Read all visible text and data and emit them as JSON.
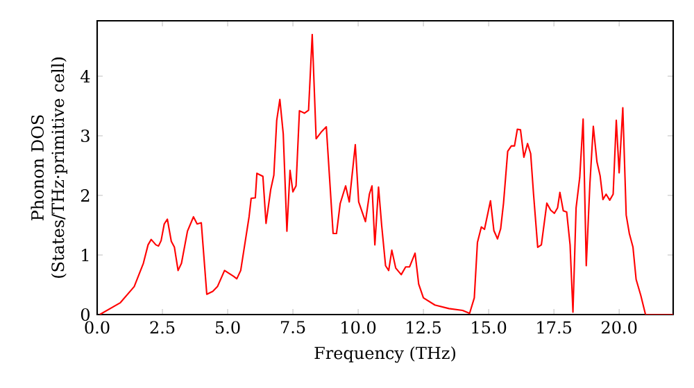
{
  "chart_data": {
    "type": "line",
    "xlabel": "Frequency (THz)",
    "ylabel": "Phonon DOS (States/THz·primitive cell)",
    "color": "#ff0000",
    "xlim": [
      0,
      22.07
    ],
    "ylim": [
      0,
      4.93
    ],
    "xticks": [
      {
        "value": 0,
        "label": "0.0"
      },
      {
        "value": 2.5,
        "label": "2.5"
      },
      {
        "value": 5,
        "label": "5.0"
      },
      {
        "value": 7.5,
        "label": "7.5"
      },
      {
        "value": 10,
        "label": "10.0"
      },
      {
        "value": 12.5,
        "label": "12.5"
      },
      {
        "value": 15,
        "label": "15.0"
      },
      {
        "value": 17.5,
        "label": "17.5"
      },
      {
        "value": 20,
        "label": "20.0"
      }
    ],
    "yticks": [
      0,
      1,
      2,
      3,
      4
    ],
    "x": [
      0.1,
      0.89,
      1.42,
      1.77,
      1.95,
      2.07,
      2.25,
      2.35,
      2.45,
      2.57,
      2.69,
      2.84,
      2.96,
      3.1,
      3.23,
      3.46,
      3.69,
      3.83,
      3.99,
      4.2,
      4.43,
      4.61,
      4.88,
      5.23,
      5.35,
      5.5,
      5.71,
      5.82,
      5.9,
      6.06,
      6.12,
      6.35,
      6.47,
      6.65,
      6.77,
      6.88,
      7.0,
      7.13,
      7.27,
      7.39,
      7.5,
      7.62,
      7.75,
      7.94,
      8.1,
      8.24,
      8.39,
      8.6,
      8.78,
      9.04,
      9.17,
      9.31,
      9.52,
      9.66,
      9.89,
      10.02,
      10.28,
      10.43,
      10.53,
      10.64,
      10.78,
      10.9,
      11.05,
      11.17,
      11.29,
      11.44,
      11.65,
      11.82,
      11.97,
      12.18,
      12.32,
      12.5,
      12.94,
      13.48,
      14.0,
      14.27,
      14.45,
      14.57,
      14.72,
      14.84,
      15.07,
      15.2,
      15.34,
      15.46,
      15.57,
      15.73,
      15.87,
      15.99,
      16.1,
      16.22,
      16.35,
      16.49,
      16.61,
      16.72,
      16.88,
      17.02,
      17.23,
      17.38,
      17.52,
      17.64,
      17.73,
      17.86,
      17.99,
      18.12,
      18.23,
      18.35,
      18.49,
      18.62,
      18.74,
      18.88,
      19.01,
      19.15,
      19.27,
      19.38,
      19.5,
      19.64,
      19.77,
      19.89,
      20.0,
      20.14,
      20.27,
      20.39,
      20.53,
      20.65,
      20.83,
      21.01,
      22.07
    ],
    "values": [
      0,
      0.2,
      0.47,
      0.86,
      1.17,
      1.26,
      1.17,
      1.15,
      1.24,
      1.52,
      1.6,
      1.23,
      1.13,
      0.74,
      0.86,
      1.4,
      1.64,
      1.52,
      1.54,
      0.34,
      0.39,
      0.47,
      0.74,
      0.64,
      0.6,
      0.74,
      1.33,
      1.64,
      1.95,
      1.96,
      2.37,
      2.32,
      1.53,
      2.1,
      2.34,
      3.26,
      3.61,
      3.03,
      1.4,
      2.42,
      2.06,
      2.16,
      3.42,
      3.38,
      3.43,
      4.7,
      2.95,
      3.07,
      3.15,
      1.36,
      1.36,
      1.86,
      2.16,
      1.89,
      2.85,
      1.89,
      1.56,
      2.02,
      2.16,
      1.17,
      2.14,
      1.5,
      0.82,
      0.74,
      1.08,
      0.78,
      0.67,
      0.8,
      0.8,
      1.03,
      0.51,
      0.28,
      0.16,
      0.1,
      0.07,
      0.02,
      0.28,
      1.21,
      1.47,
      1.43,
      1.91,
      1.41,
      1.27,
      1.44,
      1.87,
      2.74,
      2.83,
      2.83,
      3.11,
      3.1,
      2.64,
      2.87,
      2.7,
      2.02,
      1.13,
      1.17,
      1.87,
      1.75,
      1.7,
      1.79,
      2.05,
      1.74,
      1.72,
      1.17,
      0.04,
      1.79,
      2.3,
      3.28,
      0.82,
      2.2,
      3.16,
      2.56,
      2.33,
      1.93,
      2.02,
      1.92,
      2.02,
      3.26,
      2.38,
      3.47,
      1.67,
      1.36,
      1.13,
      0.59,
      0.32,
      0,
      0
    ]
  }
}
